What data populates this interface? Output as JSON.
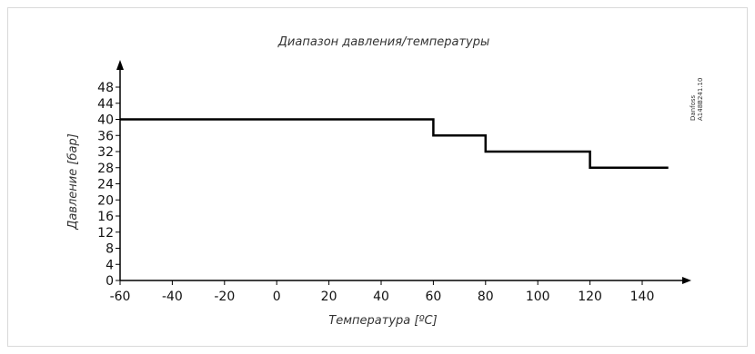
{
  "chart_data": {
    "type": "line",
    "title": "Диапазон давления/температуры",
    "xlabel": "Температура [ºC]",
    "ylabel": "Давление [бар]",
    "xlim": [
      -60,
      150
    ],
    "ylim": [
      0,
      48
    ],
    "x_ticks": [
      -60,
      -40,
      -20,
      0,
      20,
      40,
      60,
      80,
      100,
      120,
      140
    ],
    "y_ticks": [
      0,
      4,
      8,
      12,
      16,
      20,
      24,
      28,
      32,
      36,
      40,
      44,
      48
    ],
    "grid": false,
    "series": [
      {
        "x": [
          -60,
          60,
          60,
          80,
          80,
          120,
          120,
          150
        ],
        "y": [
          40,
          40,
          36,
          36,
          32,
          32,
          28,
          28
        ]
      }
    ],
    "annotation": {
      "line1": "Danfoss",
      "line2": "A148B241.10"
    }
  }
}
